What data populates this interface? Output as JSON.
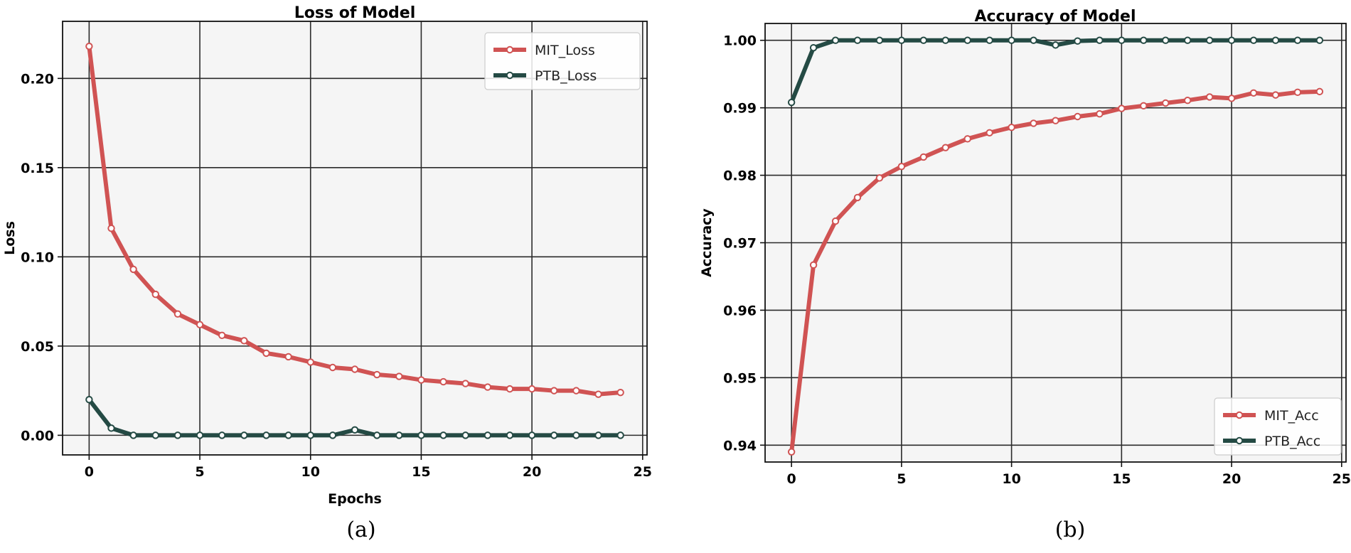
{
  "chart_data": [
    {
      "type": "line",
      "title": "Loss of Model",
      "xlabel": "Epochs",
      "ylabel": "Loss",
      "caption": "(a)",
      "xlim": [
        -1.2,
        25.2
      ],
      "ylim": [
        -0.011,
        0.232
      ],
      "xticks": [
        0,
        5,
        10,
        15,
        20,
        25
      ],
      "yticks": [
        0.0,
        0.05,
        0.1,
        0.15,
        0.2
      ],
      "ytick_labels": [
        "0.00",
        "0.05",
        "0.10",
        "0.15",
        "0.20"
      ],
      "grid": true,
      "legend_position": "top-right",
      "x": [
        0,
        1,
        2,
        3,
        4,
        5,
        6,
        7,
        8,
        9,
        10,
        11,
        12,
        13,
        14,
        15,
        16,
        17,
        18,
        19,
        20,
        21,
        22,
        23,
        24
      ],
      "series": [
        {
          "name": "MIT_Loss",
          "color": "#d05353",
          "values": [
            0.218,
            0.116,
            0.093,
            0.079,
            0.068,
            0.062,
            0.056,
            0.053,
            0.046,
            0.044,
            0.041,
            0.038,
            0.037,
            0.034,
            0.033,
            0.031,
            0.03,
            0.029,
            0.027,
            0.026,
            0.026,
            0.025,
            0.025,
            0.023,
            0.024
          ]
        },
        {
          "name": "PTB_Loss",
          "color": "#244a44",
          "values": [
            0.02,
            0.004,
            0.0,
            0.0,
            0.0,
            0.0,
            0.0,
            0.0,
            0.0,
            0.0,
            0.0,
            0.0,
            0.003,
            0.0,
            0.0,
            0.0,
            0.0,
            0.0,
            0.0,
            0.0,
            0.0,
            0.0,
            0.0,
            0.0,
            0.0
          ]
        }
      ]
    },
    {
      "type": "line",
      "title": "Accuracy of Model",
      "xlabel": "",
      "ylabel": "Accuracy",
      "caption": "(b)",
      "xlim": [
        -1.2,
        25.2
      ],
      "ylim": [
        0.9375,
        1.0025
      ],
      "xticks": [
        0,
        5,
        10,
        15,
        20,
        25
      ],
      "yticks": [
        0.94,
        0.95,
        0.96,
        0.97,
        0.98,
        0.99,
        1.0
      ],
      "ytick_labels": [
        "0.94",
        "0.95",
        "0.96",
        "0.97",
        "0.98",
        "0.99",
        "1.00"
      ],
      "grid": true,
      "legend_position": "bottom-right",
      "x": [
        0,
        1,
        2,
        3,
        4,
        5,
        6,
        7,
        8,
        9,
        10,
        11,
        12,
        13,
        14,
        15,
        16,
        17,
        18,
        19,
        20,
        21,
        22,
        23,
        24
      ],
      "series": [
        {
          "name": "MIT_Acc",
          "color": "#d05353",
          "values": [
            0.939,
            0.9667,
            0.9732,
            0.9767,
            0.9796,
            0.9813,
            0.9827,
            0.9841,
            0.9854,
            0.9863,
            0.9871,
            0.9877,
            0.9881,
            0.9887,
            0.9891,
            0.9899,
            0.9903,
            0.9907,
            0.9911,
            0.9916,
            0.9914,
            0.9922,
            0.9919,
            0.9923,
            0.9924
          ]
        },
        {
          "name": "PTB_Acc",
          "color": "#244a44",
          "values": [
            0.9908,
            0.9989,
            1.0,
            1.0,
            1.0,
            1.0,
            1.0,
            1.0,
            1.0,
            1.0,
            1.0,
            1.0,
            0.9993,
            0.9999,
            1.0,
            1.0,
            1.0,
            1.0,
            1.0,
            1.0,
            1.0,
            1.0,
            1.0,
            1.0,
            1.0
          ]
        }
      ]
    }
  ]
}
